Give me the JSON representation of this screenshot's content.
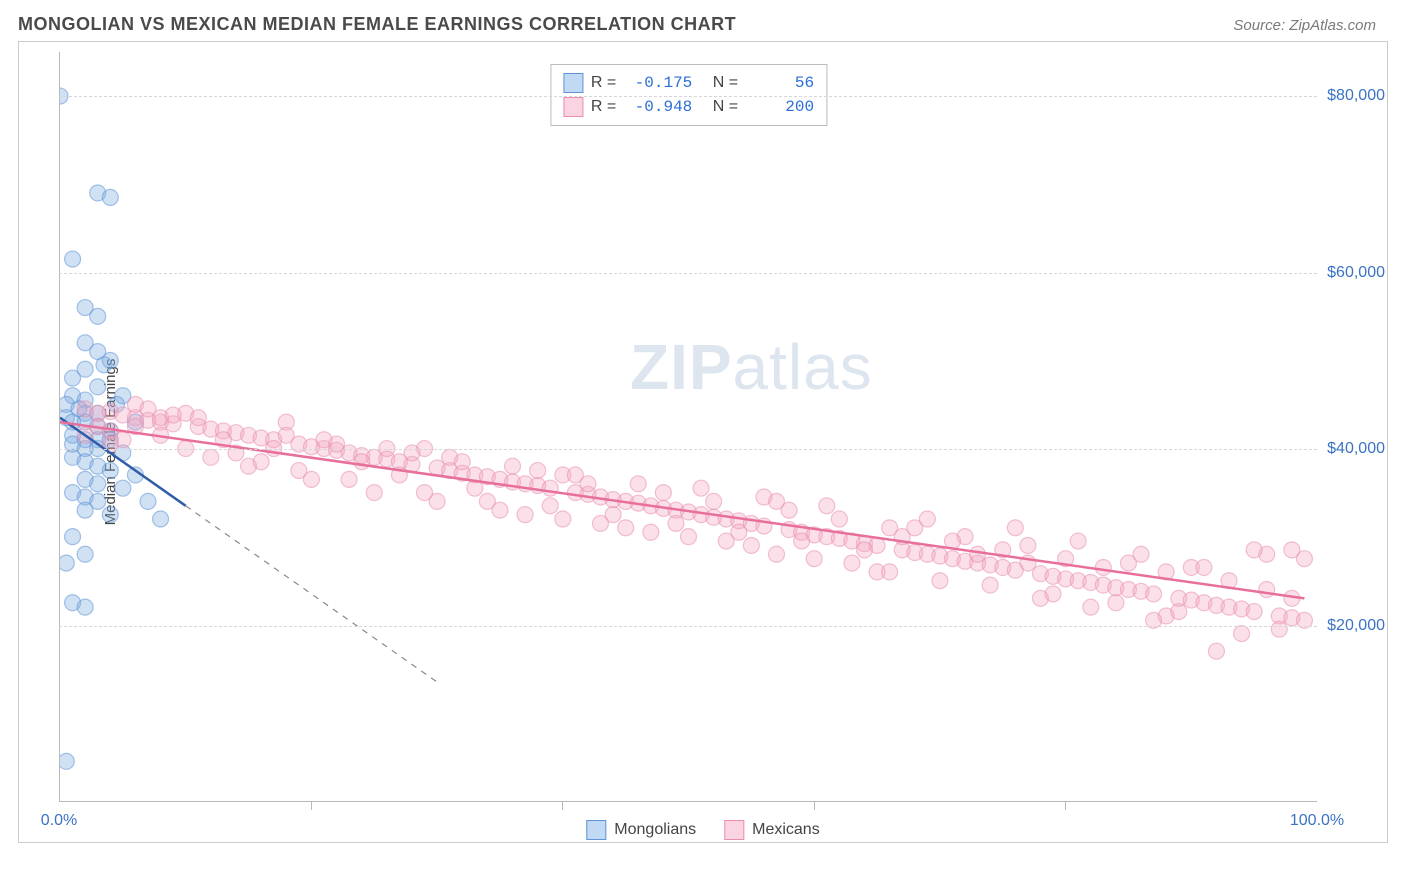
{
  "header": {
    "title": "MONGOLIAN VS MEXICAN MEDIAN FEMALE EARNINGS CORRELATION CHART",
    "source_prefix": "Source: ",
    "source_name": "ZipAtlas.com"
  },
  "watermark": {
    "bold": "ZIP",
    "rest": "atlas"
  },
  "chart": {
    "type": "scatter",
    "ylabel": "Median Female Earnings",
    "background_color": "#ffffff",
    "grid_color": "#d6d6d6",
    "axis_color": "#b9b9b9",
    "xlim": [
      0,
      100
    ],
    "ylim": [
      0,
      85000
    ],
    "xticks": [
      {
        "pos": 0,
        "label": "0.0%"
      },
      {
        "pos": 100,
        "label": "100.0%"
      }
    ],
    "xminor": [
      20,
      40,
      60,
      80
    ],
    "yticks": [
      {
        "pos": 20000,
        "label": "$20,000"
      },
      {
        "pos": 40000,
        "label": "$40,000"
      },
      {
        "pos": 60000,
        "label": "$60,000"
      },
      {
        "pos": 80000,
        "label": "$80,000"
      }
    ],
    "marker_radius": 8,
    "marker_opacity": 0.35,
    "series": [
      {
        "name": "Mongolians",
        "fill": "#7aa9e0",
        "stroke": "#5f95d6",
        "line_color": "#2f5da8",
        "line_dash_color": "#888888",
        "reg_solid": [
          [
            0,
            43500
          ],
          [
            10,
            33500
          ]
        ],
        "reg_dash": [
          [
            10,
            33500
          ],
          [
            30,
            13500
          ]
        ],
        "points": [
          [
            0,
            80000
          ],
          [
            3,
            69000
          ],
          [
            4,
            68500
          ],
          [
            1,
            61500
          ],
          [
            2,
            56000
          ],
          [
            3,
            55000
          ],
          [
            2,
            52000
          ],
          [
            3,
            51000
          ],
          [
            4,
            50000
          ],
          [
            2,
            49000
          ],
          [
            1,
            48000
          ],
          [
            3,
            47000
          ],
          [
            1,
            46000
          ],
          [
            2,
            45500
          ],
          [
            0.5,
            45000
          ],
          [
            1.5,
            44500
          ],
          [
            2,
            44000
          ],
          [
            3,
            44000
          ],
          [
            0.5,
            43500
          ],
          [
            1,
            43000
          ],
          [
            2,
            43000
          ],
          [
            3,
            42500
          ],
          [
            4,
            42000
          ],
          [
            1,
            41500
          ],
          [
            2,
            41000
          ],
          [
            3,
            41000
          ],
          [
            4,
            41000
          ],
          [
            1,
            40500
          ],
          [
            2,
            40000
          ],
          [
            3,
            40000
          ],
          [
            5,
            39500
          ],
          [
            1,
            39000
          ],
          [
            2,
            38500
          ],
          [
            3,
            38000
          ],
          [
            4,
            37500
          ],
          [
            6,
            37000
          ],
          [
            2,
            36500
          ],
          [
            3,
            36000
          ],
          [
            5,
            35500
          ],
          [
            1,
            35000
          ],
          [
            2,
            34500
          ],
          [
            3,
            34000
          ],
          [
            7,
            34000
          ],
          [
            2,
            33000
          ],
          [
            4,
            32500
          ],
          [
            8,
            32000
          ],
          [
            1,
            30000
          ],
          [
            2,
            28000
          ],
          [
            0.5,
            27000
          ],
          [
            1,
            22500
          ],
          [
            2,
            22000
          ],
          [
            0.5,
            4500
          ],
          [
            5,
            46000
          ],
          [
            6,
            43000
          ],
          [
            3.5,
            49500
          ],
          [
            4.5,
            45000
          ]
        ]
      },
      {
        "name": "Mexicans",
        "fill": "#f4a6c0",
        "stroke": "#e88fb0",
        "line_color": "#e86f9c",
        "reg_solid": [
          [
            0,
            43000
          ],
          [
            99,
            23000
          ]
        ],
        "points": [
          [
            2,
            44500
          ],
          [
            3,
            44000
          ],
          [
            4,
            44200
          ],
          [
            5,
            43800
          ],
          [
            6,
            43500
          ],
          [
            7,
            43200
          ],
          [
            8,
            43000
          ],
          [
            9,
            42800
          ],
          [
            10,
            44000
          ],
          [
            11,
            42500
          ],
          [
            12,
            42200
          ],
          [
            13,
            42000
          ],
          [
            14,
            41800
          ],
          [
            15,
            41500
          ],
          [
            16,
            41200
          ],
          [
            17,
            41000
          ],
          [
            18,
            43000
          ],
          [
            19,
            40500
          ],
          [
            20,
            40200
          ],
          [
            21,
            40000
          ],
          [
            22,
            39800
          ],
          [
            23,
            39500
          ],
          [
            24,
            39200
          ],
          [
            25,
            39000
          ],
          [
            26,
            38800
          ],
          [
            27,
            38500
          ],
          [
            28,
            38200
          ],
          [
            29,
            40000
          ],
          [
            30,
            37800
          ],
          [
            31,
            37500
          ],
          [
            32,
            37200
          ],
          [
            33,
            37000
          ],
          [
            34,
            36800
          ],
          [
            35,
            36500
          ],
          [
            36,
            36200
          ],
          [
            37,
            36000
          ],
          [
            38,
            35800
          ],
          [
            39,
            35500
          ],
          [
            40,
            37000
          ],
          [
            41,
            35000
          ],
          [
            42,
            34800
          ],
          [
            43,
            34500
          ],
          [
            44,
            34200
          ],
          [
            45,
            34000
          ],
          [
            46,
            33800
          ],
          [
            47,
            33500
          ],
          [
            48,
            33200
          ],
          [
            49,
            33000
          ],
          [
            50,
            32800
          ],
          [
            51,
            32500
          ],
          [
            52,
            32200
          ],
          [
            53,
            32000
          ],
          [
            54,
            31800
          ],
          [
            55,
            31500
          ],
          [
            56,
            31200
          ],
          [
            57,
            34000
          ],
          [
            58,
            30800
          ],
          [
            59,
            30500
          ],
          [
            60,
            30200
          ],
          [
            61,
            30000
          ],
          [
            62,
            29800
          ],
          [
            63,
            29500
          ],
          [
            64,
            29200
          ],
          [
            65,
            29000
          ],
          [
            66,
            31000
          ],
          [
            67,
            28500
          ],
          [
            68,
            28200
          ],
          [
            69,
            28000
          ],
          [
            70,
            27800
          ],
          [
            71,
            27500
          ],
          [
            72,
            27200
          ],
          [
            73,
            27000
          ],
          [
            74,
            26800
          ],
          [
            75,
            26500
          ],
          [
            76,
            26200
          ],
          [
            77,
            29000
          ],
          [
            78,
            25800
          ],
          [
            79,
            25500
          ],
          [
            80,
            25200
          ],
          [
            81,
            25000
          ],
          [
            82,
            24800
          ],
          [
            83,
            24500
          ],
          [
            84,
            24200
          ],
          [
            85,
            24000
          ],
          [
            86,
            23800
          ],
          [
            87,
            23500
          ],
          [
            88,
            26000
          ],
          [
            89,
            23000
          ],
          [
            90,
            22800
          ],
          [
            91,
            22500
          ],
          [
            92,
            22200
          ],
          [
            93,
            22000
          ],
          [
            94,
            21800
          ],
          [
            95,
            21500
          ],
          [
            96,
            28000
          ],
          [
            97,
            21000
          ],
          [
            98,
            20800
          ],
          [
            99,
            20500
          ],
          [
            95,
            28500
          ],
          [
            94,
            19000
          ],
          [
            92,
            17000
          ],
          [
            90,
            26500
          ],
          [
            88,
            21000
          ],
          [
            85,
            27000
          ],
          [
            82,
            22000
          ],
          [
            80,
            27500
          ],
          [
            78,
            23000
          ],
          [
            75,
            28500
          ],
          [
            72,
            30000
          ],
          [
            70,
            25000
          ],
          [
            68,
            31000
          ],
          [
            65,
            26000
          ],
          [
            62,
            32000
          ],
          [
            60,
            27500
          ],
          [
            58,
            33000
          ],
          [
            55,
            29000
          ],
          [
            52,
            34000
          ],
          [
            50,
            30000
          ],
          [
            48,
            35000
          ],
          [
            45,
            31000
          ],
          [
            42,
            36000
          ],
          [
            40,
            32000
          ],
          [
            38,
            37500
          ],
          [
            35,
            33000
          ],
          [
            32,
            38500
          ],
          [
            30,
            34000
          ],
          [
            28,
            39500
          ],
          [
            25,
            35000
          ],
          [
            22,
            40500
          ],
          [
            20,
            36500
          ],
          [
            18,
            41500
          ],
          [
            15,
            38000
          ],
          [
            12,
            39000
          ],
          [
            10,
            40000
          ],
          [
            8,
            43500
          ],
          [
            6,
            45000
          ],
          [
            5,
            41000
          ],
          [
            4,
            42000
          ],
          [
            14,
            39500
          ],
          [
            16,
            38500
          ],
          [
            19,
            37500
          ],
          [
            21,
            41000
          ],
          [
            23,
            36500
          ],
          [
            26,
            40000
          ],
          [
            29,
            35000
          ],
          [
            31,
            39000
          ],
          [
            34,
            34000
          ],
          [
            36,
            38000
          ],
          [
            39,
            33500
          ],
          [
            41,
            37000
          ],
          [
            44,
            32500
          ],
          [
            46,
            36000
          ],
          [
            49,
            31500
          ],
          [
            51,
            35500
          ],
          [
            54,
            30500
          ],
          [
            56,
            34500
          ],
          [
            59,
            29500
          ],
          [
            61,
            33500
          ],
          [
            64,
            28500
          ],
          [
            66,
            26000
          ],
          [
            69,
            32000
          ],
          [
            71,
            29500
          ],
          [
            74,
            24500
          ],
          [
            76,
            31000
          ],
          [
            79,
            23500
          ],
          [
            81,
            29500
          ],
          [
            84,
            22500
          ],
          [
            86,
            28000
          ],
          [
            89,
            21500
          ],
          [
            91,
            26500
          ],
          [
            93,
            25000
          ],
          [
            96,
            24000
          ],
          [
            98,
            23000
          ],
          [
            99,
            27500
          ],
          [
            97,
            19500
          ],
          [
            87,
            20500
          ],
          [
            83,
            26500
          ],
          [
            77,
            27000
          ],
          [
            73,
            28000
          ],
          [
            67,
            30000
          ],
          [
            63,
            27000
          ],
          [
            57,
            28000
          ],
          [
            53,
            29500
          ],
          [
            47,
            30500
          ],
          [
            43,
            31500
          ],
          [
            37,
            32500
          ],
          [
            33,
            35500
          ],
          [
            27,
            37000
          ],
          [
            24,
            38500
          ],
          [
            17,
            40000
          ],
          [
            13,
            41000
          ],
          [
            11,
            43500
          ],
          [
            9,
            43800
          ],
          [
            7,
            44500
          ],
          [
            3,
            42500
          ],
          [
            2,
            41500
          ],
          [
            4,
            40500
          ],
          [
            6,
            42500
          ],
          [
            8,
            41500
          ],
          [
            98,
            28500
          ]
        ]
      }
    ],
    "stats": [
      {
        "r_label": "R =",
        "r": "-0.175",
        "n_label": "N =",
        "n": "56",
        "swatch": "blue"
      },
      {
        "r_label": "R =",
        "r": "-0.948",
        "n_label": "N =",
        "n": "200",
        "swatch": "pink"
      }
    ],
    "legend": [
      {
        "label": "Mongolians",
        "swatch": "blue"
      },
      {
        "label": "Mexicans",
        "swatch": "pink"
      }
    ]
  }
}
